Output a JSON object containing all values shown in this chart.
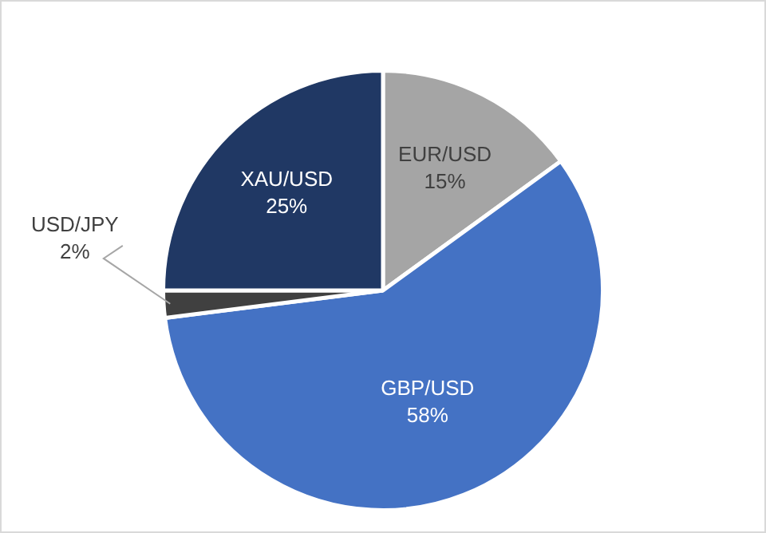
{
  "chart_data": {
    "type": "pie",
    "categories": [
      "EUR/USD",
      "GBP/USD",
      "USD/JPY",
      "XAU/USD"
    ],
    "values": [
      15,
      58,
      2,
      25
    ],
    "colors": [
      "#a5a5a5",
      "#4472c4",
      "#404040",
      "#203864"
    ],
    "value_labels": [
      "15%",
      "58%",
      "2%",
      "25%"
    ],
    "legend": false
  }
}
